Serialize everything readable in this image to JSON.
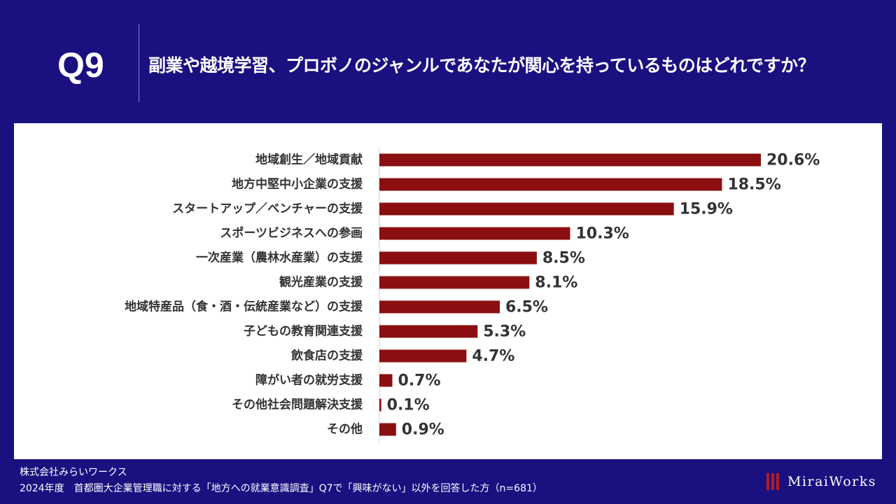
{
  "header": {
    "q_label": "Q9",
    "question": "副業や越境学習、プロボノのジャンルであなたが関心を持っているものはどれですか？"
  },
  "chart_data": {
    "type": "bar",
    "orientation": "horizontal",
    "title": "副業や越境学習、プロボノのジャンルであなたが関心を持っているものはどれですか？",
    "categories": [
      "地域創生／地域貢献",
      "地方中堅中小企業の支援",
      "スタートアップ／ベンチャーの支援",
      "スポーツビジネスへの参画",
      "一次産業（農林水産業）の支援",
      "観光産業の支援",
      "地域特産品（食・酒・伝統産業など）の支援",
      "子どもの教育関連支援",
      "飲食店の支援",
      "障がい者の就労支援",
      "その他社会問題解決支援",
      "その他"
    ],
    "values": [
      20.6,
      18.5,
      15.9,
      10.3,
      8.5,
      8.1,
      6.5,
      5.3,
      4.7,
      0.7,
      0.1,
      0.9
    ],
    "value_labels": [
      "20.6%",
      "18.5%",
      "15.9%",
      "10.3%",
      "8.5%",
      "8.1%",
      "6.5%",
      "5.3%",
      "4.7%",
      "0.7%",
      "0.1%",
      "0.9%"
    ],
    "unit": "%",
    "xlim": [
      0,
      25
    ],
    "bar_color": "#8b0f10",
    "grid": false
  },
  "footer": {
    "company": "株式会社みらいワークス",
    "note": "2024年度　首都圏大企業管理職に対する「地方への就業意識調査」Q7で「興味がない」以外を回答した方（n=681）"
  },
  "logo": {
    "text": "MiraiWorks"
  },
  "colors": {
    "background": "#1a1080",
    "panel": "#ffffff",
    "bar": "#8b0f10",
    "logo_accent": "#b01e23"
  }
}
